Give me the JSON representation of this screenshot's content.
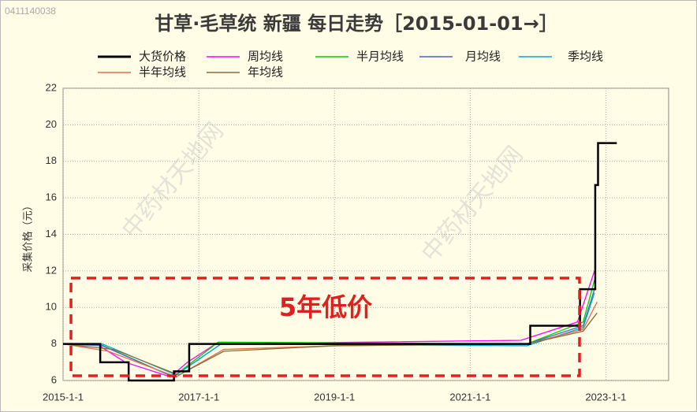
{
  "chart_data": {
    "type": "line",
    "id_text": "0411140038",
    "title": "甘草·毛草统 新疆 每日走势［2015-01-01→］",
    "ylabel": "采集价格（元）",
    "annotation": "5年低价",
    "watermark": "中药材天地网",
    "xlim": [
      "2015-01-01",
      "2023-12-05"
    ],
    "xticks": [
      {
        "value": "2015-01-01",
        "label": "2015-1-1"
      },
      {
        "value": "2017-01-01",
        "label": "2017-1-1"
      },
      {
        "value": "2019-01-01",
        "label": "2019-1-1"
      },
      {
        "value": "2021-01-01",
        "label": "2021-1-1"
      },
      {
        "value": "2023-01-01",
        "label": "2023-1-1"
      }
    ],
    "ylim": [
      6,
      22
    ],
    "yticks": [
      6,
      8,
      10,
      12,
      14,
      16,
      18,
      20,
      22
    ],
    "grid": true,
    "series": [
      {
        "name": "大货价格",
        "color": "#000000",
        "step": true,
        "x": [
          "2015-01-01",
          "2015-07-20",
          "2015-12-20",
          "2016-08-20",
          "2016-11-10",
          "2021-11-20",
          "2022-08-15",
          "2022-11-05",
          "2022-11-20",
          "2023-03-01"
        ],
        "values": [
          8,
          7,
          6,
          6.5,
          8,
          9,
          11,
          16.7,
          19,
          19
        ]
      },
      {
        "name": "周均线",
        "color": "#ff00ff",
        "x": [
          "2015-01-01",
          "2015-07-01",
          "2015-12-01",
          "2016-08-01",
          "2016-11-01",
          "2017-04-01",
          "2021-10-01",
          "2022-08-01",
          "2022-11-01"
        ],
        "values": [
          8,
          8,
          7,
          6.2,
          7,
          8,
          8.2,
          9.2,
          12
        ]
      },
      {
        "name": "半月均线",
        "color": "#00cc00",
        "x": [
          "2015-01-01",
          "2015-07-15",
          "2016-08-15",
          "2017-04-15",
          "2021-11-01",
          "2022-09-01",
          "2022-11-01"
        ],
        "values": [
          8,
          8,
          6.2,
          8.1,
          8,
          9.2,
          11.5
        ]
      },
      {
        "name": "月均线",
        "color": "#4466cc",
        "x": [
          "2015-01-01",
          "2015-08-01",
          "2016-08-15",
          "2017-05-01",
          "2021-11-01",
          "2022-09-01",
          "2022-11-01"
        ],
        "values": [
          8,
          7.9,
          6.2,
          8,
          8,
          9,
          11
        ]
      },
      {
        "name": "季均线",
        "color": "#00aacc",
        "x": [
          "2015-01-01",
          "2015-08-01",
          "2016-09-01",
          "2017-05-01",
          "2021-11-01",
          "2022-09-01",
          "2022-11-01"
        ],
        "values": [
          8,
          8,
          6.3,
          8,
          7.9,
          8.9,
          10.8
        ]
      },
      {
        "name": "半年均线",
        "color": "#e07050",
        "x": [
          "2015-01-01",
          "2015-09-01",
          "2016-09-01",
          "2017-05-15",
          "2019-01-01",
          "2021-11-01",
          "2022-09-01",
          "2022-11-15"
        ],
        "values": [
          8,
          7.6,
          6.2,
          7.7,
          7.9,
          8,
          8.8,
          10.3
        ]
      },
      {
        "name": "年均线",
        "color": "#8b6b3a",
        "x": [
          "2015-01-01",
          "2015-10-01",
          "2016-09-15",
          "2017-05-15",
          "2019-01-01",
          "2021-11-01",
          "2022-09-01",
          "2022-11-15"
        ],
        "values": [
          8,
          7.7,
          6.3,
          7.6,
          7.9,
          8,
          8.7,
          9.7
        ]
      }
    ]
  }
}
